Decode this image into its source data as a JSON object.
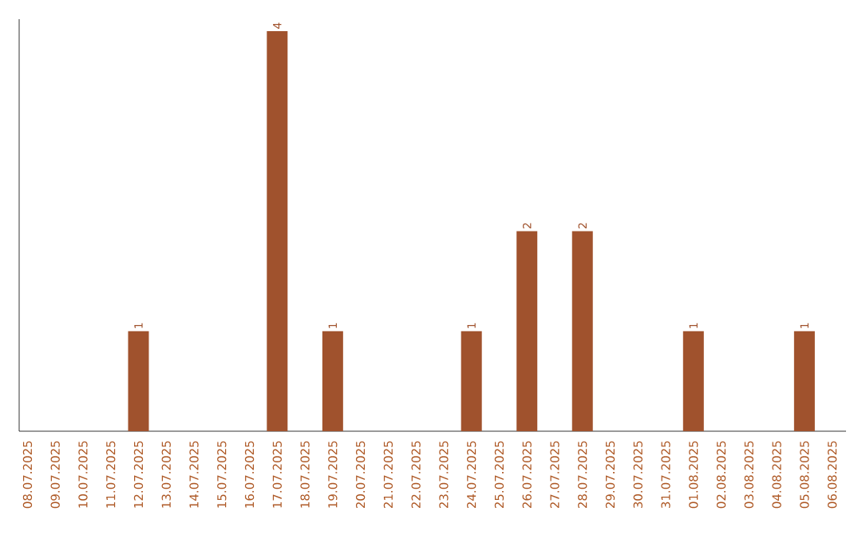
{
  "chart_data": {
    "type": "bar",
    "color": "#a0522d",
    "categories": [
      "08.07.2025",
      "09.07.2025",
      "10.07.2025",
      "11.07.2025",
      "12.07.2025",
      "13.07.2025",
      "14.07.2025",
      "15.07.2025",
      "16.07.2025",
      "17.07.2025",
      "18.07.2025",
      "19.07.2025",
      "20.07.2025",
      "21.07.2025",
      "22.07.2025",
      "23.07.2025",
      "24.07.2025",
      "25.07.2025",
      "26.07.2025",
      "27.07.2025",
      "28.07.2025",
      "29.07.2025",
      "30.07.2025",
      "31.07.2025",
      "01.08.2025",
      "02.08.2025",
      "03.08.2025",
      "04.08.2025",
      "05.08.2025",
      "06.08.2025"
    ],
    "values": [
      0,
      0,
      0,
      0,
      1,
      0,
      0,
      0,
      0,
      4,
      0,
      1,
      0,
      0,
      0,
      0,
      1,
      0,
      2,
      0,
      2,
      0,
      0,
      0,
      1,
      0,
      0,
      0,
      1,
      0
    ],
    "value_labels": [
      null,
      null,
      null,
      null,
      "1",
      null,
      null,
      null,
      null,
      "4",
      null,
      "1",
      null,
      null,
      null,
      null,
      "1",
      null,
      "2",
      null,
      "2",
      null,
      null,
      null,
      "1",
      null,
      null,
      null,
      "1",
      null
    ]
  }
}
